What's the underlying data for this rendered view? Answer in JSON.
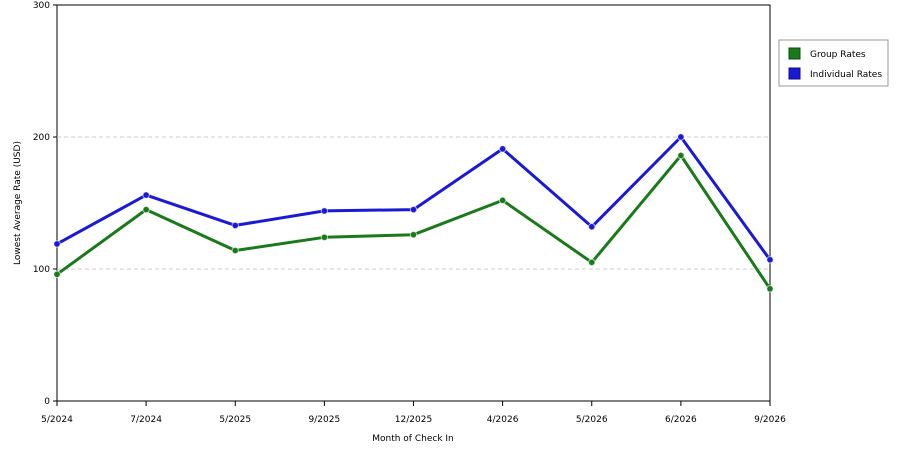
{
  "chart_data": {
    "type": "line",
    "title": "",
    "xlabel": "Month of Check In",
    "ylabel": "Lowest Average Rate (USD)",
    "categories": [
      "5/2024",
      "7/2024",
      "5/2025",
      "9/2025",
      "12/2025",
      "4/2026",
      "5/2026",
      "6/2026",
      "9/2026"
    ],
    "ylim": [
      0,
      300
    ],
    "yticks": [
      0,
      100,
      200,
      300
    ],
    "grid": "horizontal dashed",
    "legend_position": "right",
    "series": [
      {
        "name": "Group Rates",
        "color": "#1a7a1a",
        "values": [
          96,
          145,
          114,
          124,
          126,
          152,
          105,
          186,
          85
        ]
      },
      {
        "name": "Individual Rates",
        "color": "#1a1ad6",
        "values": [
          119,
          156,
          133,
          144,
          145,
          191,
          132,
          200,
          107
        ]
      }
    ]
  }
}
